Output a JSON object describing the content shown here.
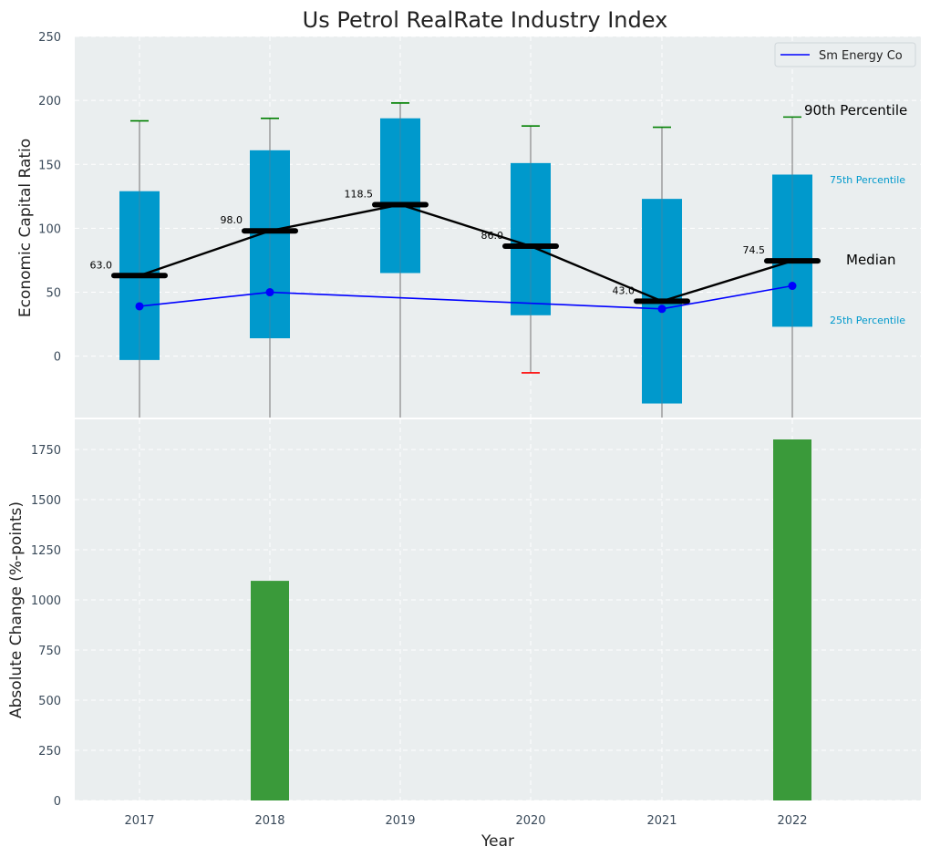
{
  "chart_data": [
    {
      "type": "box",
      "title": "Us Petrol RealRate Industry Index",
      "xlabel": "",
      "ylabel": "Economic Capital Ratio",
      "ylim": [
        -48,
        250
      ],
      "yticks": [
        0,
        50,
        100,
        150,
        200,
        250
      ],
      "categories": [
        "2017",
        "2018",
        "2019",
        "2020",
        "2021",
        "2022"
      ],
      "boxes": [
        {
          "year": "2017",
          "p10": -48,
          "p25": -3,
          "median": 63.0,
          "p75": 129,
          "p90": 184
        },
        {
          "year": "2018",
          "p10": -48,
          "p25": 14,
          "median": 98.0,
          "p75": 161,
          "p90": 186
        },
        {
          "year": "2019",
          "p10": -48,
          "p25": 65,
          "median": 118.5,
          "p75": 186,
          "p90": 198
        },
        {
          "year": "2020",
          "p10": -13,
          "p25": 32,
          "median": 86.0,
          "p75": 151,
          "p90": 180
        },
        {
          "year": "2021",
          "p10": -48,
          "p25": -37,
          "median": 43.0,
          "p75": 123,
          "p90": 179
        },
        {
          "year": "2022",
          "p10": -48,
          "p25": 23,
          "median": 74.5,
          "p75": 142,
          "p90": 187
        }
      ],
      "median_labels": [
        "63.0",
        "98.0",
        "118.5",
        "86.0",
        "43.0",
        "74.5"
      ],
      "series": [
        {
          "name": "Sm Energy Co",
          "color": "#0000ff",
          "values": [
            39,
            50,
            null,
            null,
            37,
            55
          ]
        }
      ],
      "annotations": {
        "p90": "90th Percentile",
        "p75": "75th Percentile",
        "median": "Median",
        "p25": "25th Percentile"
      },
      "legend": {
        "position": "top-right",
        "entries": [
          "Sm Energy Co"
        ]
      }
    },
    {
      "type": "bar",
      "title": "",
      "xlabel": "Year",
      "ylabel": "Absolute Change (%-points)",
      "ylim": [
        0,
        1900
      ],
      "yticks": [
        0,
        250,
        500,
        750,
        1000,
        1250,
        1500,
        1750
      ],
      "categories": [
        "2017",
        "2018",
        "2019",
        "2020",
        "2021",
        "2022"
      ],
      "values": [
        0,
        1095,
        0,
        0,
        0,
        1800
      ]
    }
  ],
  "colors": {
    "box": "#0099cc",
    "panel_bg": "#eaeeef",
    "bar": "#3a9a3a",
    "median_line": "#000000",
    "p90_cap": "#008000",
    "p10_cap": "#ff0000",
    "whisker": "#888888",
    "company": "#0000ff",
    "annot_percentile": "#0099cc"
  }
}
